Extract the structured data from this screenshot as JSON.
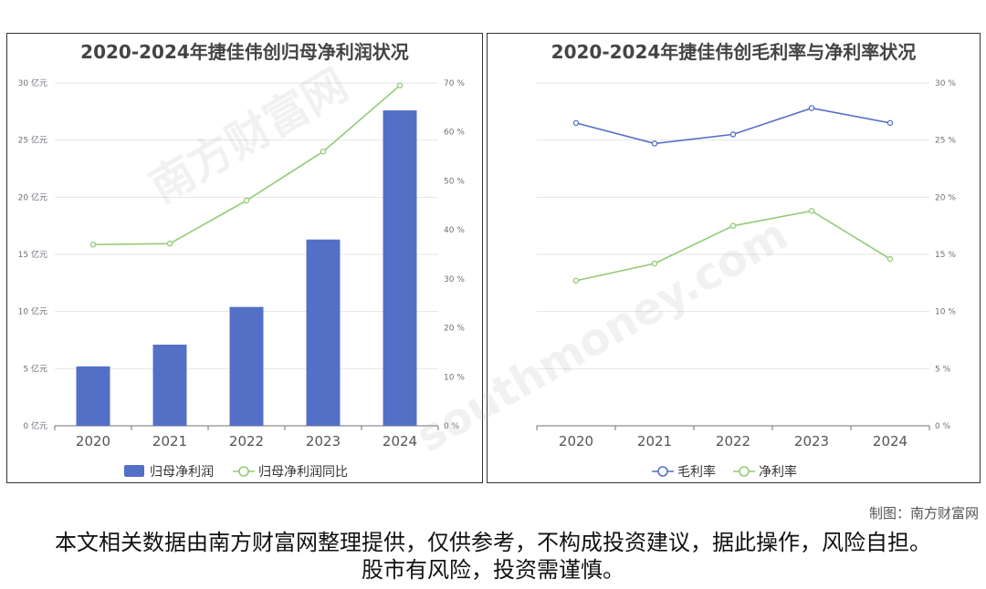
{
  "watermark": {
    "cn": "南方财富网",
    "en": "southmoney.com"
  },
  "credit": "制图：南方财富网",
  "disclaimer": "本文相关数据由南方财富网整理提供，仅供参考，不构成投资建议，据此操作，风险自担。股市有风险，投资需谨慎。",
  "chart_data": [
    {
      "type": "bar",
      "title": "2020-2024年捷佳伟创归母净利润状况",
      "categories": [
        "2020",
        "2021",
        "2022",
        "2023",
        "2024"
      ],
      "series": [
        {
          "name": "归母净利润",
          "type": "bar",
          "axis": "left",
          "color": "#5470c6",
          "values": [
            5.2,
            7.1,
            10.4,
            16.3,
            27.6
          ]
        },
        {
          "name": "归母净利润同比",
          "type": "line",
          "axis": "right",
          "color": "#91cc75",
          "values": [
            37,
            37.2,
            46,
            56,
            69.5
          ]
        }
      ],
      "y_left": {
        "ticks": [
          "0 亿元",
          "5 亿元",
          "10 亿元",
          "15 亿元",
          "20 亿元",
          "25 亿元",
          "30 亿元"
        ],
        "min": 0,
        "max": 30
      },
      "y_right": {
        "ticks": [
          "0 %",
          "10 %",
          "20 %",
          "30 %",
          "40 %",
          "50 %",
          "60 %",
          "70 %"
        ],
        "min": 0,
        "max": 70
      },
      "grid": true,
      "legend": "bottom"
    },
    {
      "type": "line",
      "title": "2020-2024年捷佳伟创毛利率与净利率状况",
      "categories": [
        "2020",
        "2021",
        "2022",
        "2023",
        "2024"
      ],
      "series": [
        {
          "name": "毛利率",
          "color": "#5470c6",
          "values": [
            26.5,
            24.7,
            25.5,
            27.8,
            26.5
          ]
        },
        {
          "name": "净利率",
          "color": "#91cc75",
          "values": [
            12.7,
            14.2,
            17.5,
            18.8,
            14.6
          ]
        }
      ],
      "y_right": {
        "ticks": [
          "0 %",
          "5 %",
          "10 %",
          "15 %",
          "20 %",
          "25 %",
          "30 %"
        ],
        "min": 0,
        "max": 30
      },
      "grid": true,
      "legend": "bottom"
    }
  ]
}
